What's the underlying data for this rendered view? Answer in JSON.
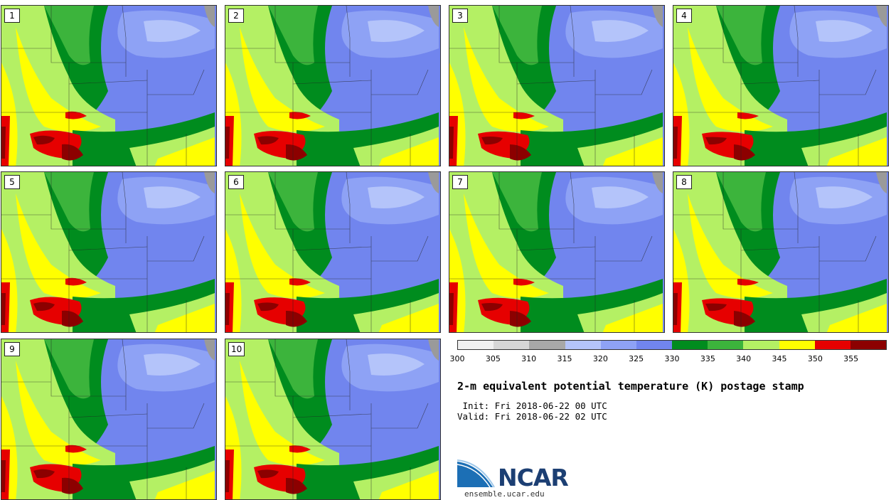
{
  "panels": [
    {
      "label": "1"
    },
    {
      "label": "2"
    },
    {
      "label": "3"
    },
    {
      "label": "4"
    },
    {
      "label": "5"
    },
    {
      "label": "6"
    },
    {
      "label": "7"
    },
    {
      "label": "8"
    },
    {
      "label": "9"
    },
    {
      "label": "10"
    }
  ],
  "colorbar": {
    "colors": [
      "#f0f0f0",
      "#d6d6d6",
      "#a8a8a8",
      "#b4c4fa",
      "#8ea2f5",
      "#7185ee",
      "#008c1e",
      "#3cb43c",
      "#b4f064",
      "#ffff00",
      "#e60000",
      "#8c0000"
    ],
    "ticks": [
      "300",
      "305",
      "310",
      "315",
      "320",
      "325",
      "330",
      "335",
      "340",
      "345",
      "350",
      "355"
    ]
  },
  "title": "2-m equivalent potential temperature (K) postage stamp",
  "init": " Init: Fri 2018-06-22 00 UTC",
  "valid": "Valid: Fri 2018-06-22 02 UTC",
  "logo": {
    "text": "NCAR",
    "site": "ensemble.ucar.edu"
  }
}
